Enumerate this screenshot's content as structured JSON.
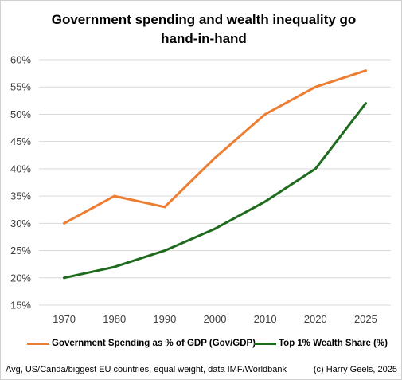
{
  "chart_data": {
    "type": "line",
    "title": "Government spending and wealth inequality go hand-in-hand",
    "x": [
      "1970",
      "1980",
      "1990",
      "2000",
      "2010",
      "2020",
      "2025"
    ],
    "ylim": [
      15,
      60
    ],
    "yticks": [
      "60%",
      "55%",
      "50%",
      "45%",
      "40%",
      "35%",
      "30%",
      "25%",
      "20%",
      "15%"
    ],
    "ytick_values": [
      60,
      55,
      50,
      45,
      40,
      35,
      30,
      25,
      20,
      15
    ],
    "grid": "horizontal",
    "legend_position": "bottom",
    "series": [
      {
        "name": "Government Spending as % of GDP (Gov/GDP)",
        "color": "#ED7D31",
        "values": [
          30,
          35,
          33,
          42,
          50,
          55,
          58
        ]
      },
      {
        "name": "Top 1% Wealth Share (%)",
        "color": "#1E6B1E",
        "values": [
          20,
          22,
          25,
          29,
          34,
          40,
          52
        ]
      }
    ]
  },
  "footer": {
    "note": "Avg, US/Canda/biggest EU countries, equal weight, data IMF/Worldbank",
    "credit": "(c) Harry Geels, 2025"
  }
}
